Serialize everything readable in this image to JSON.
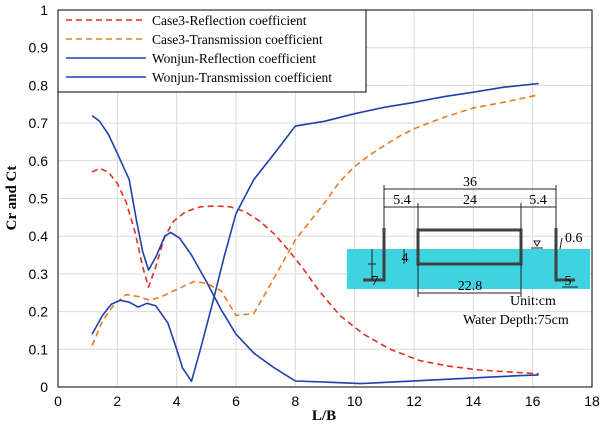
{
  "chart_data": {
    "type": "line",
    "xlabel": "L/B",
    "ylabel": "Cr and Ct",
    "xlim": [
      0,
      18
    ],
    "ylim": [
      0,
      1
    ],
    "xticks": [
      "0",
      "2",
      "4",
      "6",
      "8",
      "10",
      "12",
      "14",
      "16",
      "18"
    ],
    "yticks": [
      "0",
      "0.1",
      "0.2",
      "0.3",
      "0.4",
      "0.5",
      "0.6",
      "0.7",
      "0.8",
      "0.9",
      "1"
    ],
    "grid": true,
    "legend_position": "top-left",
    "series": [
      {
        "name": "Case3-Reflection coefficient",
        "color": "#e03020",
        "dash": true,
        "x": [
          1.15,
          1.4,
          1.7,
          2.0,
          2.3,
          2.6,
          2.85,
          3.05,
          3.3,
          3.6,
          3.9,
          4.3,
          4.8,
          5.3,
          5.8,
          6.3,
          6.8,
          7.3,
          7.8,
          8.3,
          8.8,
          9.5,
          10.3,
          11.2,
          12.2,
          13.2,
          14.2,
          15.2,
          16.2
        ],
        "y": [
          0.57,
          0.58,
          0.57,
          0.54,
          0.49,
          0.41,
          0.32,
          0.265,
          0.32,
          0.4,
          0.44,
          0.465,
          0.478,
          0.48,
          0.478,
          0.465,
          0.44,
          0.405,
          0.36,
          0.31,
          0.255,
          0.19,
          0.14,
          0.1,
          0.07,
          0.055,
          0.045,
          0.04,
          0.035
        ]
      },
      {
        "name": "Case3-Transmission coefficient",
        "color": "#e87b1e",
        "dash": true,
        "x": [
          1.15,
          1.5,
          1.9,
          2.3,
          2.7,
          3.1,
          3.5,
          3.9,
          4.3,
          4.6,
          5.0,
          5.5,
          6.0,
          6.6,
          7.0,
          7.5,
          8.0,
          8.5,
          9.0,
          9.5,
          10.0,
          10.5,
          11.0,
          11.5,
          12.0,
          13.0,
          14.0,
          15.0,
          16.2
        ],
        "y": [
          0.11,
          0.175,
          0.22,
          0.245,
          0.24,
          0.23,
          0.24,
          0.255,
          0.27,
          0.28,
          0.275,
          0.255,
          0.19,
          0.195,
          0.25,
          0.32,
          0.39,
          0.44,
          0.49,
          0.545,
          0.585,
          0.615,
          0.64,
          0.665,
          0.685,
          0.715,
          0.74,
          0.755,
          0.775
        ]
      },
      {
        "name": "Wonjun-Reflection coefficient",
        "color": "#1f3fae",
        "dash": false,
        "x": [
          1.15,
          1.4,
          1.7,
          2.0,
          2.4,
          2.65,
          2.85,
          3.05,
          3.3,
          3.6,
          3.8,
          4.1,
          4.5,
          5.0,
          5.5,
          6.0,
          6.6,
          7.3,
          8.0,
          9.0,
          10.2,
          11.5,
          12.5,
          13.5,
          14.5,
          15.5,
          16.2
        ],
        "y": [
          0.72,
          0.705,
          0.67,
          0.62,
          0.55,
          0.44,
          0.36,
          0.31,
          0.345,
          0.4,
          0.41,
          0.395,
          0.35,
          0.28,
          0.205,
          0.14,
          0.09,
          0.05,
          0.016,
          0.013,
          0.009,
          0.014,
          0.018,
          0.022,
          0.026,
          0.03,
          0.032
        ]
      },
      {
        "name": "Wonjun-Transmission coefficient",
        "color": "#1f3fae",
        "dash": false,
        "x": [
          1.15,
          1.5,
          1.8,
          2.1,
          2.4,
          2.7,
          3.0,
          3.3,
          3.7,
          4.0,
          4.2,
          4.5,
          4.8,
          5.2,
          5.6,
          6.0,
          6.6,
          7.3,
          8.0,
          9.0,
          10.0,
          11.0,
          12.0,
          13.0,
          14.0,
          15.0,
          16.2
        ],
        "y": [
          0.14,
          0.19,
          0.22,
          0.23,
          0.225,
          0.212,
          0.222,
          0.215,
          0.17,
          0.1,
          0.05,
          0.015,
          0.1,
          0.22,
          0.345,
          0.46,
          0.55,
          0.62,
          0.692,
          0.705,
          0.725,
          0.742,
          0.755,
          0.77,
          0.782,
          0.795,
          0.805
        ]
      }
    ]
  },
  "inset": {
    "dimensions": {
      "total_width": "36",
      "left_gap": "5.4",
      "box_width": "24",
      "right_gap": "5.4",
      "freeboard": "0.6",
      "draft": "4",
      "wall_depth": "7",
      "bottom_width": "22.8",
      "wall_right": "5"
    },
    "unit_note": "Unit:cm",
    "depth_note": "Water Depth:75cm",
    "colors": {
      "water": "#3dd4e0",
      "structure": "#404040"
    }
  }
}
